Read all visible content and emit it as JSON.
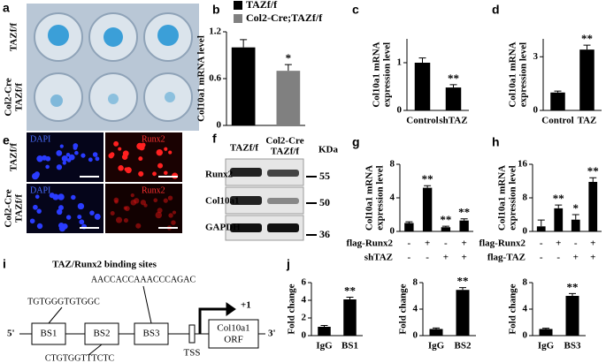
{
  "figure": {
    "a": {
      "label": "a",
      "rows": [
        [
          "TAZf/f"
        ],
        [
          "Col2-Cre",
          "TAZf/f"
        ]
      ]
    },
    "e": {
      "label": "e",
      "rows": [
        [
          "TAZf/f"
        ],
        [
          "Col2-Cre",
          "TAZf/f"
        ]
      ],
      "stains": [
        "DAPI",
        "Runx2"
      ]
    },
    "f": {
      "label": "f",
      "columns": [
        [
          "TAZf/f"
        ],
        [
          "Col2-Cre",
          "TAZf/f"
        ]
      ],
      "unit": "KDa",
      "proteins": [
        "Runx2",
        "Col10a1",
        "GAPDH"
      ],
      "markers": [
        "55",
        "50",
        "36"
      ]
    },
    "i": {
      "label": "i",
      "title": "TAZ/Runx2 binding sites",
      "sites": [
        "BS1",
        "BS2",
        "BS3"
      ],
      "sequences": [
        "TGTGGGTGTGGC",
        "CTGTGGTTTCTC",
        "AACCACCAAACCCAGAC"
      ],
      "tss": "TSS",
      "start": "+1",
      "gene": [
        "Col10a1",
        "ORF"
      ],
      "ends": [
        "5'",
        "3'"
      ]
    }
  },
  "chart_data": [
    {
      "type": "bar",
      "panel": "b",
      "ylabel": [
        "Col10a1 mRNA level"
      ],
      "categories": [
        null
      ],
      "series": [
        {
          "name": "TAZf/f",
          "color": "#000000",
          "values": [
            1.0
          ],
          "errors": [
            0.1
          ]
        },
        {
          "name": "Col2-Cre;TAZf/f",
          "color": "#808080",
          "values": [
            0.7
          ],
          "errors": [
            0.08
          ],
          "significance": [
            "*"
          ]
        }
      ],
      "ylim": [
        0,
        1.2
      ],
      "yticks": [
        0,
        0.6,
        1.2
      ]
    },
    {
      "type": "bar",
      "panel": "c",
      "ylabel": [
        "Col10a1 mRNA",
        "expression  level"
      ],
      "categories": [
        "Control",
        "shTAZ"
      ],
      "values": [
        1.0,
        0.48
      ],
      "errors": [
        0.1,
        0.06
      ],
      "significance": [
        null,
        "**"
      ],
      "color": "#000000",
      "ylim": [
        0,
        1.5
      ],
      "yticks": [
        0,
        1
      ]
    },
    {
      "type": "bar",
      "panel": "d",
      "ylabel": [
        "Col10a1 mRNA",
        "expression level"
      ],
      "categories": [
        "Control",
        "TAZ"
      ],
      "values": [
        1.0,
        3.4
      ],
      "errors": [
        0.08,
        0.25
      ],
      "significance": [
        null,
        "**"
      ],
      "color": "#000000",
      "ylim": [
        0,
        4
      ],
      "yticks": [
        0,
        3
      ]
    },
    {
      "type": "bar",
      "panel": "g",
      "ylabel": [
        "Col10a1 mRNA",
        "expression level"
      ],
      "categories": [
        null,
        null,
        null,
        null
      ],
      "values": [
        1.0,
        5.2,
        0.5,
        1.3
      ],
      "errors": [
        0.15,
        0.25,
        0.12,
        0.2
      ],
      "significance": [
        null,
        "**",
        "**",
        "**"
      ],
      "color": "#000000",
      "ylim": [
        0,
        8
      ],
      "yticks": [
        0,
        4,
        8
      ],
      "x_table": [
        {
          "label": "flag-Runx2",
          "marks": [
            "-",
            "+",
            "-",
            "+"
          ]
        },
        {
          "label": "shTAZ",
          "marks": [
            "-",
            "-",
            "+",
            "+"
          ]
        }
      ]
    },
    {
      "type": "bar",
      "panel": "h",
      "ylabel": [
        "Col10a1 mRNA",
        "expression level"
      ],
      "categories": [
        null,
        null,
        null,
        null
      ],
      "values": [
        1.2,
        5.5,
        2.8,
        11.8
      ],
      "errors": [
        1.5,
        0.8,
        1.2,
        1.0
      ],
      "significance": [
        null,
        "**",
        "*",
        "**"
      ],
      "color": "#000000",
      "ylim": [
        0,
        16
      ],
      "yticks": [
        0,
        8,
        16
      ],
      "x_table": [
        {
          "label": "flag-Runx2",
          "marks": [
            "-",
            "+",
            "-",
            "+"
          ]
        },
        {
          "label": "flag-TAZ",
          "marks": [
            "-",
            "-",
            "+",
            "+"
          ]
        }
      ]
    },
    {
      "type": "bar",
      "panel": "j",
      "ylabel": [
        "Fold change"
      ],
      "categories": [
        "IgG",
        "BS1"
      ],
      "values": [
        1.0,
        4.1
      ],
      "errors": [
        0.15,
        0.25
      ],
      "significance": [
        null,
        "**"
      ],
      "color": "#000000",
      "ylim": [
        0,
        6
      ],
      "yticks": [
        0,
        2,
        4,
        6
      ]
    },
    {
      "type": "bar",
      "ylabel": [
        "Fold change"
      ],
      "categories": [
        "IgG",
        "BS2"
      ],
      "values": [
        1.0,
        6.9
      ],
      "errors": [
        0.15,
        0.35
      ],
      "significance": [
        null,
        "**"
      ],
      "color": "#000000",
      "ylim": [
        0,
        8
      ],
      "yticks": [
        0,
        4,
        8
      ]
    },
    {
      "type": "bar",
      "ylabel": [
        "Fold change"
      ],
      "categories": [
        "IgG",
        "BS3"
      ],
      "values": [
        1.0,
        6.0
      ],
      "errors": [
        0.12,
        0.35
      ],
      "significance": [
        null,
        "**"
      ],
      "color": "#000000",
      "ylim": [
        0,
        8
      ],
      "yticks": [
        0,
        4,
        8
      ]
    }
  ]
}
